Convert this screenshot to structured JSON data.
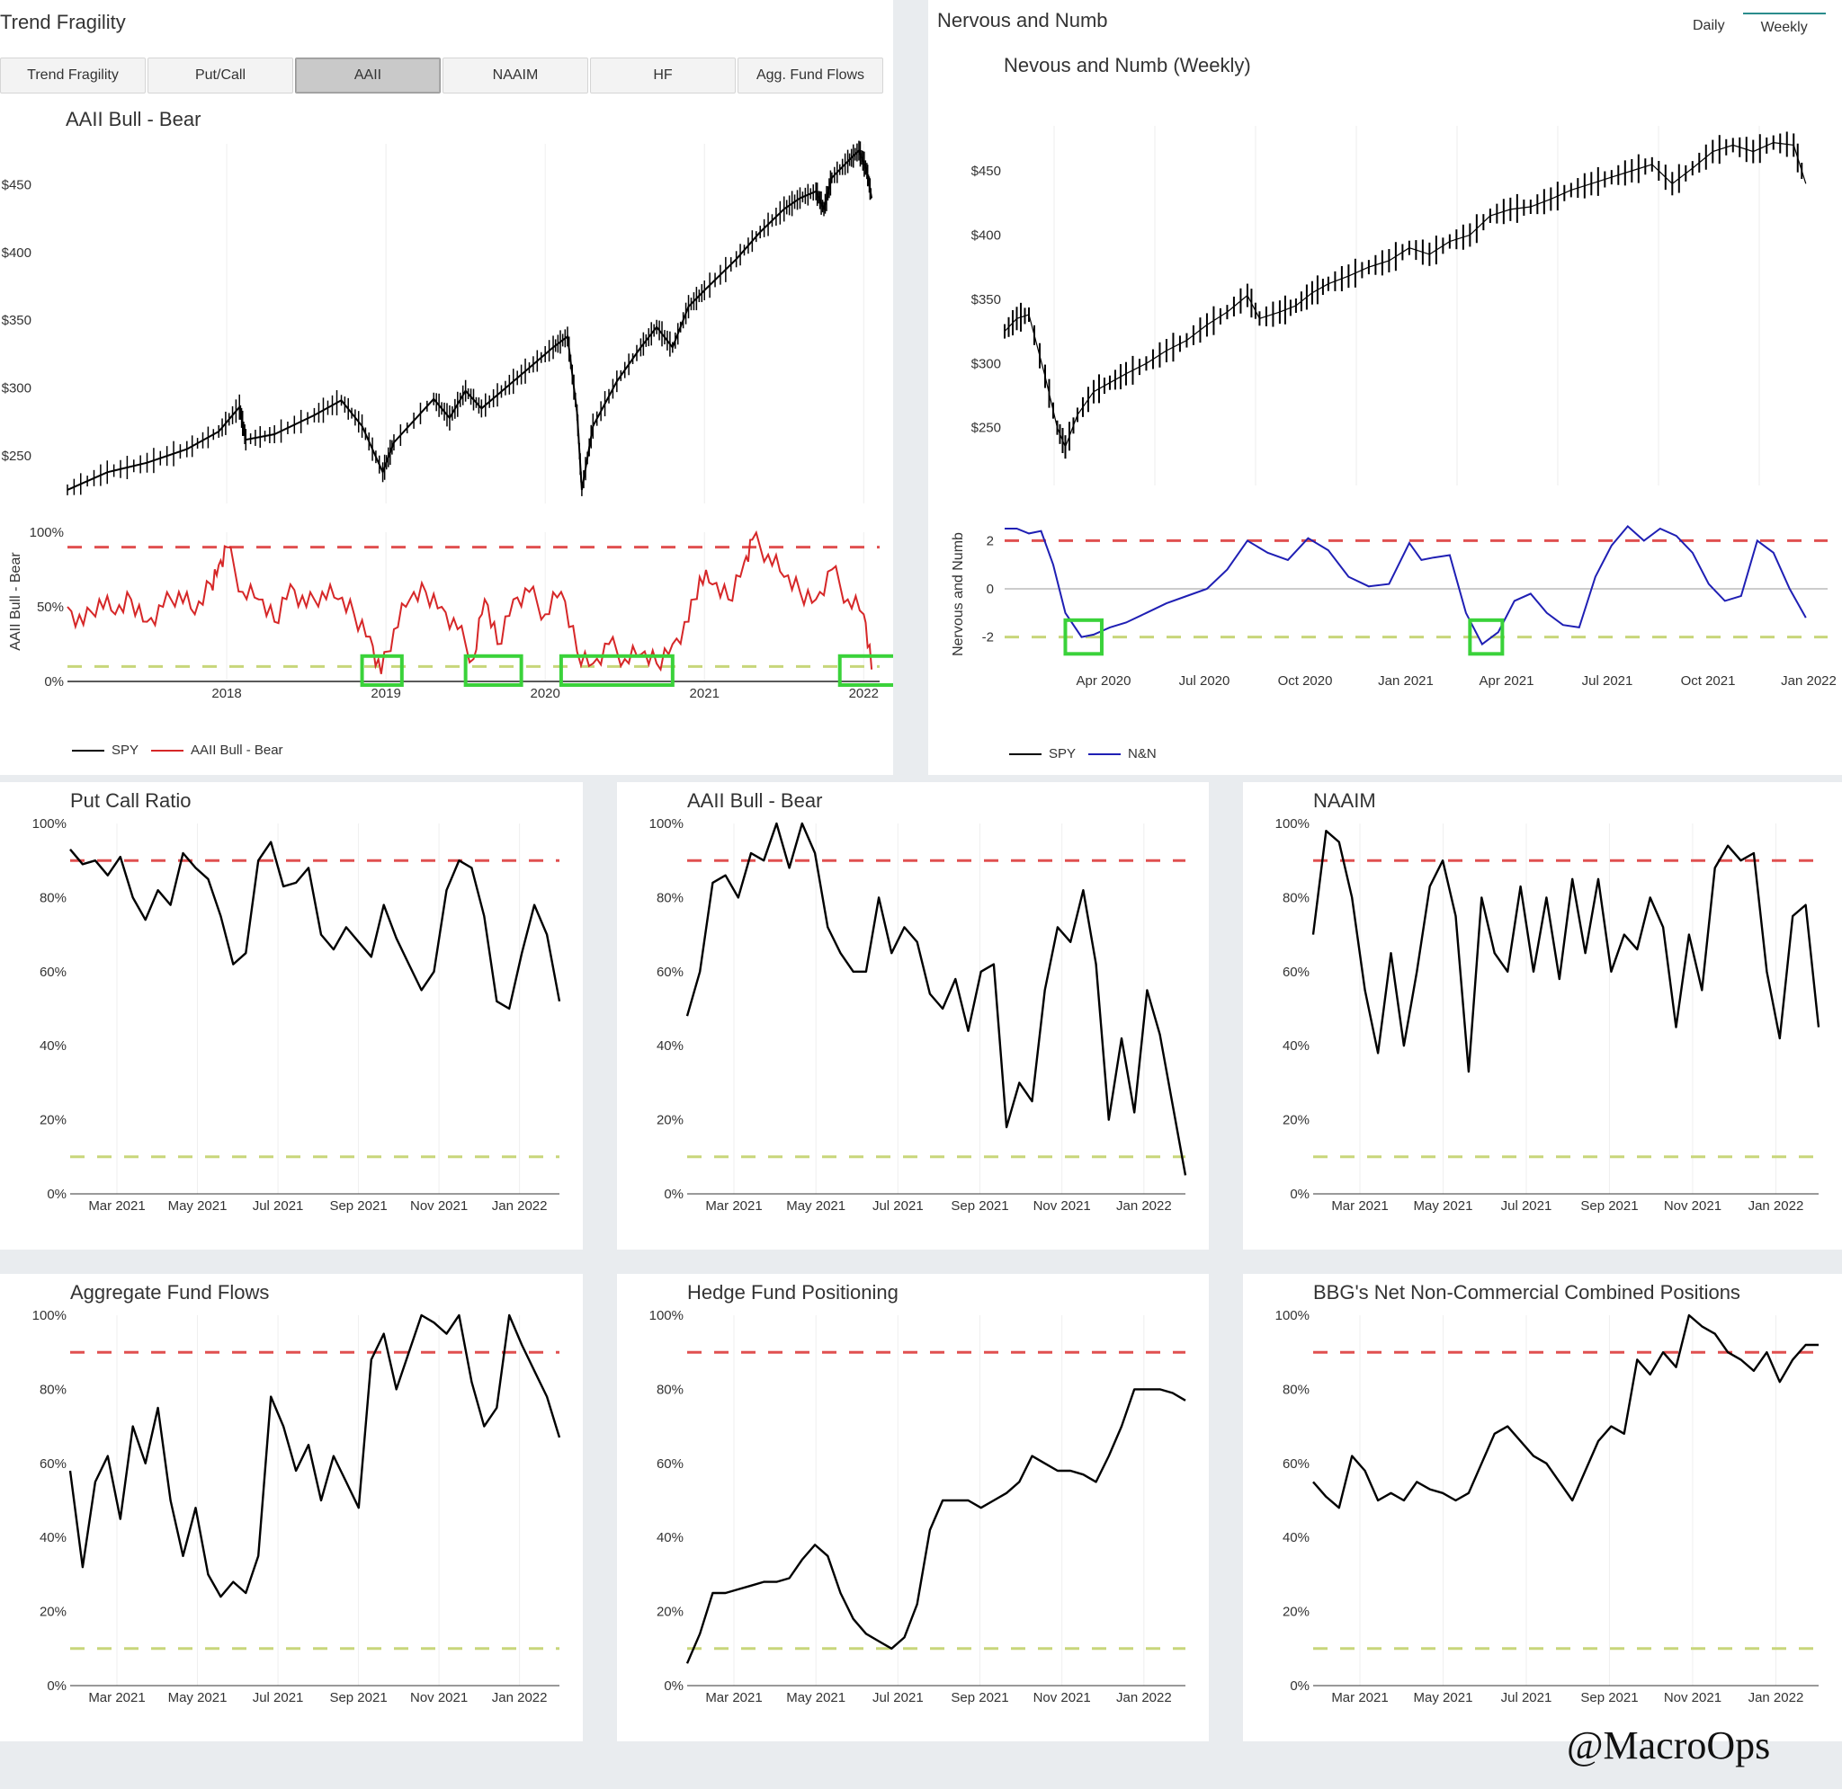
{
  "top_left": {
    "title": "Trend Fragility",
    "tabs": [
      {
        "label": "Trend Fragility",
        "active": false
      },
      {
        "label": "Put/Call",
        "active": false
      },
      {
        "label": "AAII",
        "active": true
      },
      {
        "label": "NAAIM",
        "active": false
      },
      {
        "label": "HF",
        "active": false
      },
      {
        "label": "Agg. Fund Flows",
        "active": false
      }
    ],
    "chart_title": "AAII Bull - Bear",
    "y_label": "AAII Bull - Bear",
    "legend": [
      {
        "name": "SPY",
        "color": "#000000"
      },
      {
        "name": "AAII Bull - Bear",
        "color": "#d62728"
      }
    ]
  },
  "top_right": {
    "title": "Nervous and Numb",
    "timeframes": [
      {
        "label": "Daily",
        "active": false
      },
      {
        "label": "Weekly",
        "active": true
      }
    ],
    "chart_title": "Nevous and Numb (Weekly)",
    "y_label": "Nervous and Numb",
    "legend": [
      {
        "name": "SPY",
        "color": "#000000"
      },
      {
        "name": "N&N",
        "color": "#1f1fb4"
      }
    ]
  },
  "watermark": "@MacroOps",
  "chart_data": [
    {
      "id": "aaii-spy",
      "type": "candlestick",
      "series_name": "SPY",
      "x_ticks": [
        "2018",
        "2019",
        "2020",
        "2021",
        "2022"
      ],
      "y_ticks": [
        "$250",
        "$300",
        "$350",
        "$400",
        "$450"
      ],
      "ylim": [
        215,
        480
      ],
      "x_range": [
        2017.0,
        2022.1
      ],
      "points": [
        [
          2017.0,
          225
        ],
        [
          2017.25,
          238
        ],
        [
          2017.5,
          245
        ],
        [
          2017.75,
          255
        ],
        [
          2017.95,
          268
        ],
        [
          2018.08,
          286
        ],
        [
          2018.12,
          262
        ],
        [
          2018.3,
          266
        ],
        [
          2018.55,
          280
        ],
        [
          2018.72,
          291
        ],
        [
          2018.85,
          272
        ],
        [
          2018.98,
          238
        ],
        [
          2019.05,
          260
        ],
        [
          2019.3,
          292
        ],
        [
          2019.4,
          278
        ],
        [
          2019.5,
          298
        ],
        [
          2019.6,
          285
        ],
        [
          2019.75,
          300
        ],
        [
          2019.9,
          315
        ],
        [
          2020.05,
          330
        ],
        [
          2020.14,
          338
        ],
        [
          2020.2,
          282
        ],
        [
          2020.23,
          225
        ],
        [
          2020.3,
          272
        ],
        [
          2020.45,
          305
        ],
        [
          2020.6,
          330
        ],
        [
          2020.7,
          345
        ],
        [
          2020.8,
          330
        ],
        [
          2020.9,
          360
        ],
        [
          2021.0,
          372
        ],
        [
          2021.2,
          395
        ],
        [
          2021.35,
          415
        ],
        [
          2021.5,
          432
        ],
        [
          2021.6,
          440
        ],
        [
          2021.7,
          445
        ],
        [
          2021.75,
          432
        ],
        [
          2021.8,
          455
        ],
        [
          2021.9,
          467
        ],
        [
          2021.97,
          475
        ],
        [
          2022.02,
          460
        ],
        [
          2022.05,
          440
        ]
      ]
    },
    {
      "id": "aaii-spread",
      "type": "line",
      "series_name": "AAII Bull - Bear",
      "x_ticks": [
        "2018",
        "2019",
        "2020",
        "2021",
        "2022"
      ],
      "y_ticks": [
        "0%",
        "50%",
        "100%"
      ],
      "ylim": [
        0,
        100
      ],
      "upper_threshold": 90,
      "lower_threshold": 10,
      "x_range": [
        2017.0,
        2022.1
      ],
      "x": [
        2017.0,
        2017.1,
        2017.2,
        2017.3,
        2017.4,
        2017.5,
        2017.6,
        2017.7,
        2017.8,
        2017.9,
        2017.95,
        2018.0,
        2018.1,
        2018.2,
        2018.3,
        2018.4,
        2018.5,
        2018.6,
        2018.7,
        2018.8,
        2018.9,
        2018.97,
        2019.05,
        2019.15,
        2019.25,
        2019.35,
        2019.45,
        2019.55,
        2019.62,
        2019.7,
        2019.8,
        2019.9,
        2020.0,
        2020.1,
        2020.2,
        2020.3,
        2020.4,
        2020.5,
        2020.6,
        2020.7,
        2020.8,
        2020.9,
        2020.97,
        2021.05,
        2021.15,
        2021.25,
        2021.3,
        2021.4,
        2021.5,
        2021.6,
        2021.7,
        2021.8,
        2021.9,
        2022.0,
        2022.05
      ],
      "values": [
        50,
        38,
        55,
        45,
        55,
        40,
        50,
        60,
        45,
        65,
        78,
        90,
        60,
        55,
        40,
        65,
        50,
        60,
        55,
        45,
        30,
        5,
        35,
        55,
        60,
        50,
        35,
        15,
        55,
        25,
        55,
        60,
        45,
        60,
        20,
        12,
        25,
        15,
        18,
        12,
        25,
        40,
        70,
        65,
        55,
        80,
        95,
        85,
        70,
        60,
        55,
        75,
        55,
        45,
        8
      ]
    },
    {
      "id": "nn-spy",
      "type": "candlestick",
      "series_name": "SPY",
      "x_ticks": [
        "Apr 2020",
        "Jul 2020",
        "Oct 2020",
        "Jan 2021",
        "Apr 2021",
        "Jul 2021",
        "Oct 2021",
        "Jan 2022"
      ],
      "y_ticks": [
        "$250",
        "$300",
        "$350",
        "$400",
        "$450"
      ],
      "ylim": [
        205,
        485
      ],
      "x_range": [
        0,
        24
      ],
      "points": [
        [
          0.0,
          325
        ],
        [
          0.3,
          335
        ],
        [
          0.6,
          338
        ],
        [
          1.0,
          290
        ],
        [
          1.3,
          250
        ],
        [
          1.5,
          235
        ],
        [
          1.8,
          260
        ],
        [
          2.2,
          278
        ],
        [
          2.6,
          285
        ],
        [
          3.0,
          292
        ],
        [
          3.5,
          300
        ],
        [
          4.0,
          310
        ],
        [
          4.5,
          318
        ],
        [
          5.0,
          330
        ],
        [
          5.5,
          340
        ],
        [
          6.0,
          353
        ],
        [
          6.3,
          335
        ],
        [
          6.8,
          340
        ],
        [
          7.2,
          345
        ],
        [
          7.6,
          355
        ],
        [
          8.0,
          362
        ],
        [
          8.5,
          368
        ],
        [
          9.0,
          375
        ],
        [
          9.5,
          380
        ],
        [
          10.0,
          390
        ],
        [
          10.5,
          385
        ],
        [
          11.0,
          395
        ],
        [
          11.5,
          400
        ],
        [
          12.0,
          415
        ],
        [
          12.5,
          420
        ],
        [
          13.0,
          422
        ],
        [
          13.5,
          428
        ],
        [
          14.0,
          435
        ],
        [
          14.5,
          440
        ],
        [
          15.0,
          445
        ],
        [
          15.5,
          450
        ],
        [
          16.0,
          455
        ],
        [
          16.5,
          440
        ],
        [
          17.0,
          452
        ],
        [
          17.5,
          465
        ],
        [
          18.0,
          470
        ],
        [
          18.5,
          465
        ],
        [
          19.0,
          472
        ],
        [
          19.5,
          470
        ],
        [
          19.8,
          440
        ]
      ]
    },
    {
      "id": "nn-line",
      "type": "line",
      "series_name": "N&N",
      "x_ticks": [
        "Apr 2020",
        "Jul 2020",
        "Oct 2020",
        "Jan 2021",
        "Apr 2021",
        "Jul 2021",
        "Oct 2021",
        "Jan 2022"
      ],
      "y_ticks": [
        "-2",
        "0",
        "2"
      ],
      "ylim": [
        -2.8,
        2.8
      ],
      "upper_threshold": 2,
      "lower_threshold": -2,
      "x_range": [
        0,
        24
      ],
      "x": [
        0.0,
        0.3,
        0.6,
        0.9,
        1.2,
        1.5,
        1.9,
        2.2,
        2.6,
        3.0,
        3.5,
        4.0,
        4.5,
        5.0,
        5.5,
        6.0,
        6.5,
        7.0,
        7.5,
        8.0,
        8.5,
        9.0,
        9.5,
        10.0,
        10.3,
        10.6,
        11.0,
        11.4,
        11.8,
        12.2,
        12.6,
        13.0,
        13.4,
        13.8,
        14.2,
        14.6,
        15.0,
        15.4,
        15.8,
        16.2,
        16.6,
        17.0,
        17.4,
        17.8,
        18.2,
        18.6,
        19.0,
        19.4,
        19.8
      ],
      "values": [
        2.5,
        2.5,
        2.3,
        2.4,
        1.0,
        -1.0,
        -2.0,
        -1.9,
        -1.6,
        -1.4,
        -1.0,
        -0.6,
        -0.3,
        0.0,
        0.8,
        2.0,
        1.5,
        1.2,
        2.1,
        1.6,
        0.5,
        0.1,
        0.2,
        1.9,
        1.2,
        1.3,
        1.4,
        -1.0,
        -2.3,
        -1.8,
        -0.5,
        -0.2,
        -1.0,
        -1.5,
        -1.6,
        0.5,
        1.8,
        2.6,
        2.0,
        2.5,
        2.2,
        1.5,
        0.2,
        -0.5,
        -0.3,
        2.0,
        1.5,
        0.0,
        -1.2
      ]
    },
    {
      "id": "put-call",
      "type": "line",
      "title": "Put Call Ratio",
      "x_ticks": [
        "Mar 2021",
        "May 2021",
        "Jul 2021",
        "Sep 2021",
        "Nov 2021",
        "Jan 2022"
      ],
      "y_ticks": [
        "0%",
        "20%",
        "40%",
        "60%",
        "80%",
        "100%"
      ],
      "ylim": [
        0,
        100
      ],
      "upper_threshold": 90,
      "lower_threshold": 10,
      "x_range": [
        0,
        12
      ],
      "values": [
        93,
        89,
        90,
        86,
        91,
        80,
        74,
        82,
        78,
        92,
        88,
        85,
        75,
        62,
        65,
        90,
        95,
        83,
        84,
        88,
        70,
        66,
        72,
        68,
        64,
        78,
        69,
        62,
        55,
        60,
        82,
        90,
        88,
        75,
        52,
        50,
        65,
        78,
        70,
        52
      ]
    },
    {
      "id": "aaii-bottom",
      "type": "line",
      "title": "AAII Bull - Bear",
      "x_ticks": [
        "Mar 2021",
        "May 2021",
        "Jul 2021",
        "Sep 2021",
        "Nov 2021",
        "Jan 2022"
      ],
      "y_ticks": [
        "0%",
        "20%",
        "40%",
        "60%",
        "80%",
        "100%"
      ],
      "ylim": [
        0,
        100
      ],
      "upper_threshold": 90,
      "lower_threshold": 10,
      "x_range": [
        0,
        12
      ],
      "values": [
        48,
        60,
        84,
        86,
        80,
        92,
        90,
        100,
        88,
        100,
        92,
        72,
        65,
        60,
        60,
        80,
        65,
        72,
        68,
        54,
        50,
        58,
        44,
        60,
        62,
        18,
        30,
        25,
        55,
        72,
        68,
        82,
        62,
        20,
        42,
        22,
        55,
        43,
        24,
        5
      ]
    },
    {
      "id": "naaim",
      "type": "line",
      "title": "NAAIM",
      "x_ticks": [
        "Mar 2021",
        "May 2021",
        "Jul 2021",
        "Sep 2021",
        "Nov 2021",
        "Jan 2022"
      ],
      "y_ticks": [
        "0%",
        "20%",
        "40%",
        "60%",
        "80%",
        "100%"
      ],
      "ylim": [
        0,
        100
      ],
      "upper_threshold": 90,
      "lower_threshold": 10,
      "x_range": [
        0,
        12
      ],
      "values": [
        70,
        98,
        95,
        80,
        55,
        38,
        65,
        40,
        60,
        83,
        90,
        75,
        33,
        80,
        65,
        60,
        83,
        60,
        80,
        58,
        85,
        65,
        85,
        60,
        70,
        66,
        80,
        72,
        45,
        70,
        55,
        88,
        94,
        90,
        92,
        60,
        42,
        75,
        78,
        45
      ]
    },
    {
      "id": "agg-fund-flows",
      "type": "line",
      "title": "Aggregate Fund Flows",
      "x_ticks": [
        "Mar 2021",
        "May 2021",
        "Jul 2021",
        "Sep 2021",
        "Nov 2021",
        "Jan 2022"
      ],
      "y_ticks": [
        "0%",
        "20%",
        "40%",
        "60%",
        "80%",
        "100%"
      ],
      "ylim": [
        0,
        100
      ],
      "upper_threshold": 90,
      "lower_threshold": 10,
      "x_range": [
        0,
        12
      ],
      "values": [
        58,
        32,
        55,
        62,
        45,
        70,
        60,
        75,
        50,
        35,
        48,
        30,
        24,
        28,
        25,
        35,
        78,
        70,
        58,
        65,
        50,
        62,
        55,
        48,
        88,
        95,
        80,
        90,
        100,
        98,
        95,
        100,
        82,
        70,
        75,
        100,
        92,
        85,
        78,
        67
      ]
    },
    {
      "id": "hedge-fund",
      "type": "line",
      "title": "Hedge Fund Positioning",
      "x_ticks": [
        "Mar 2021",
        "May 2021",
        "Jul 2021",
        "Sep 2021",
        "Nov 2021",
        "Jan 2022"
      ],
      "y_ticks": [
        "0%",
        "20%",
        "40%",
        "60%",
        "80%",
        "100%"
      ],
      "ylim": [
        0,
        100
      ],
      "upper_threshold": 90,
      "lower_threshold": 10,
      "x_range": [
        0,
        12
      ],
      "values": [
        6,
        14,
        25,
        25,
        26,
        27,
        28,
        28,
        29,
        34,
        38,
        35,
        25,
        18,
        14,
        12,
        10,
        13,
        22,
        42,
        50,
        50,
        50,
        48,
        50,
        52,
        55,
        62,
        60,
        58,
        58,
        57,
        55,
        62,
        70,
        80,
        80,
        80,
        79,
        77
      ]
    },
    {
      "id": "bbg-positions",
      "type": "line",
      "title": "BBG's Net Non-Commercial Combined Positions",
      "x_ticks": [
        "Mar 2021",
        "May 2021",
        "Jul 2021",
        "Sep 2021",
        "Nov 2021",
        "Jan 2022"
      ],
      "y_ticks": [
        "0%",
        "20%",
        "40%",
        "60%",
        "80%",
        "100%"
      ],
      "ylim": [
        0,
        100
      ],
      "upper_threshold": 90,
      "lower_threshold": 10,
      "x_range": [
        0,
        12
      ],
      "values": [
        55,
        51,
        48,
        62,
        58,
        50,
        52,
        50,
        55,
        53,
        52,
        50,
        52,
        60,
        68,
        70,
        66,
        62,
        60,
        55,
        50,
        58,
        66,
        70,
        68,
        88,
        84,
        90,
        86,
        100,
        97,
        95,
        90,
        88,
        85,
        90,
        82,
        88,
        92,
        92
      ]
    }
  ]
}
